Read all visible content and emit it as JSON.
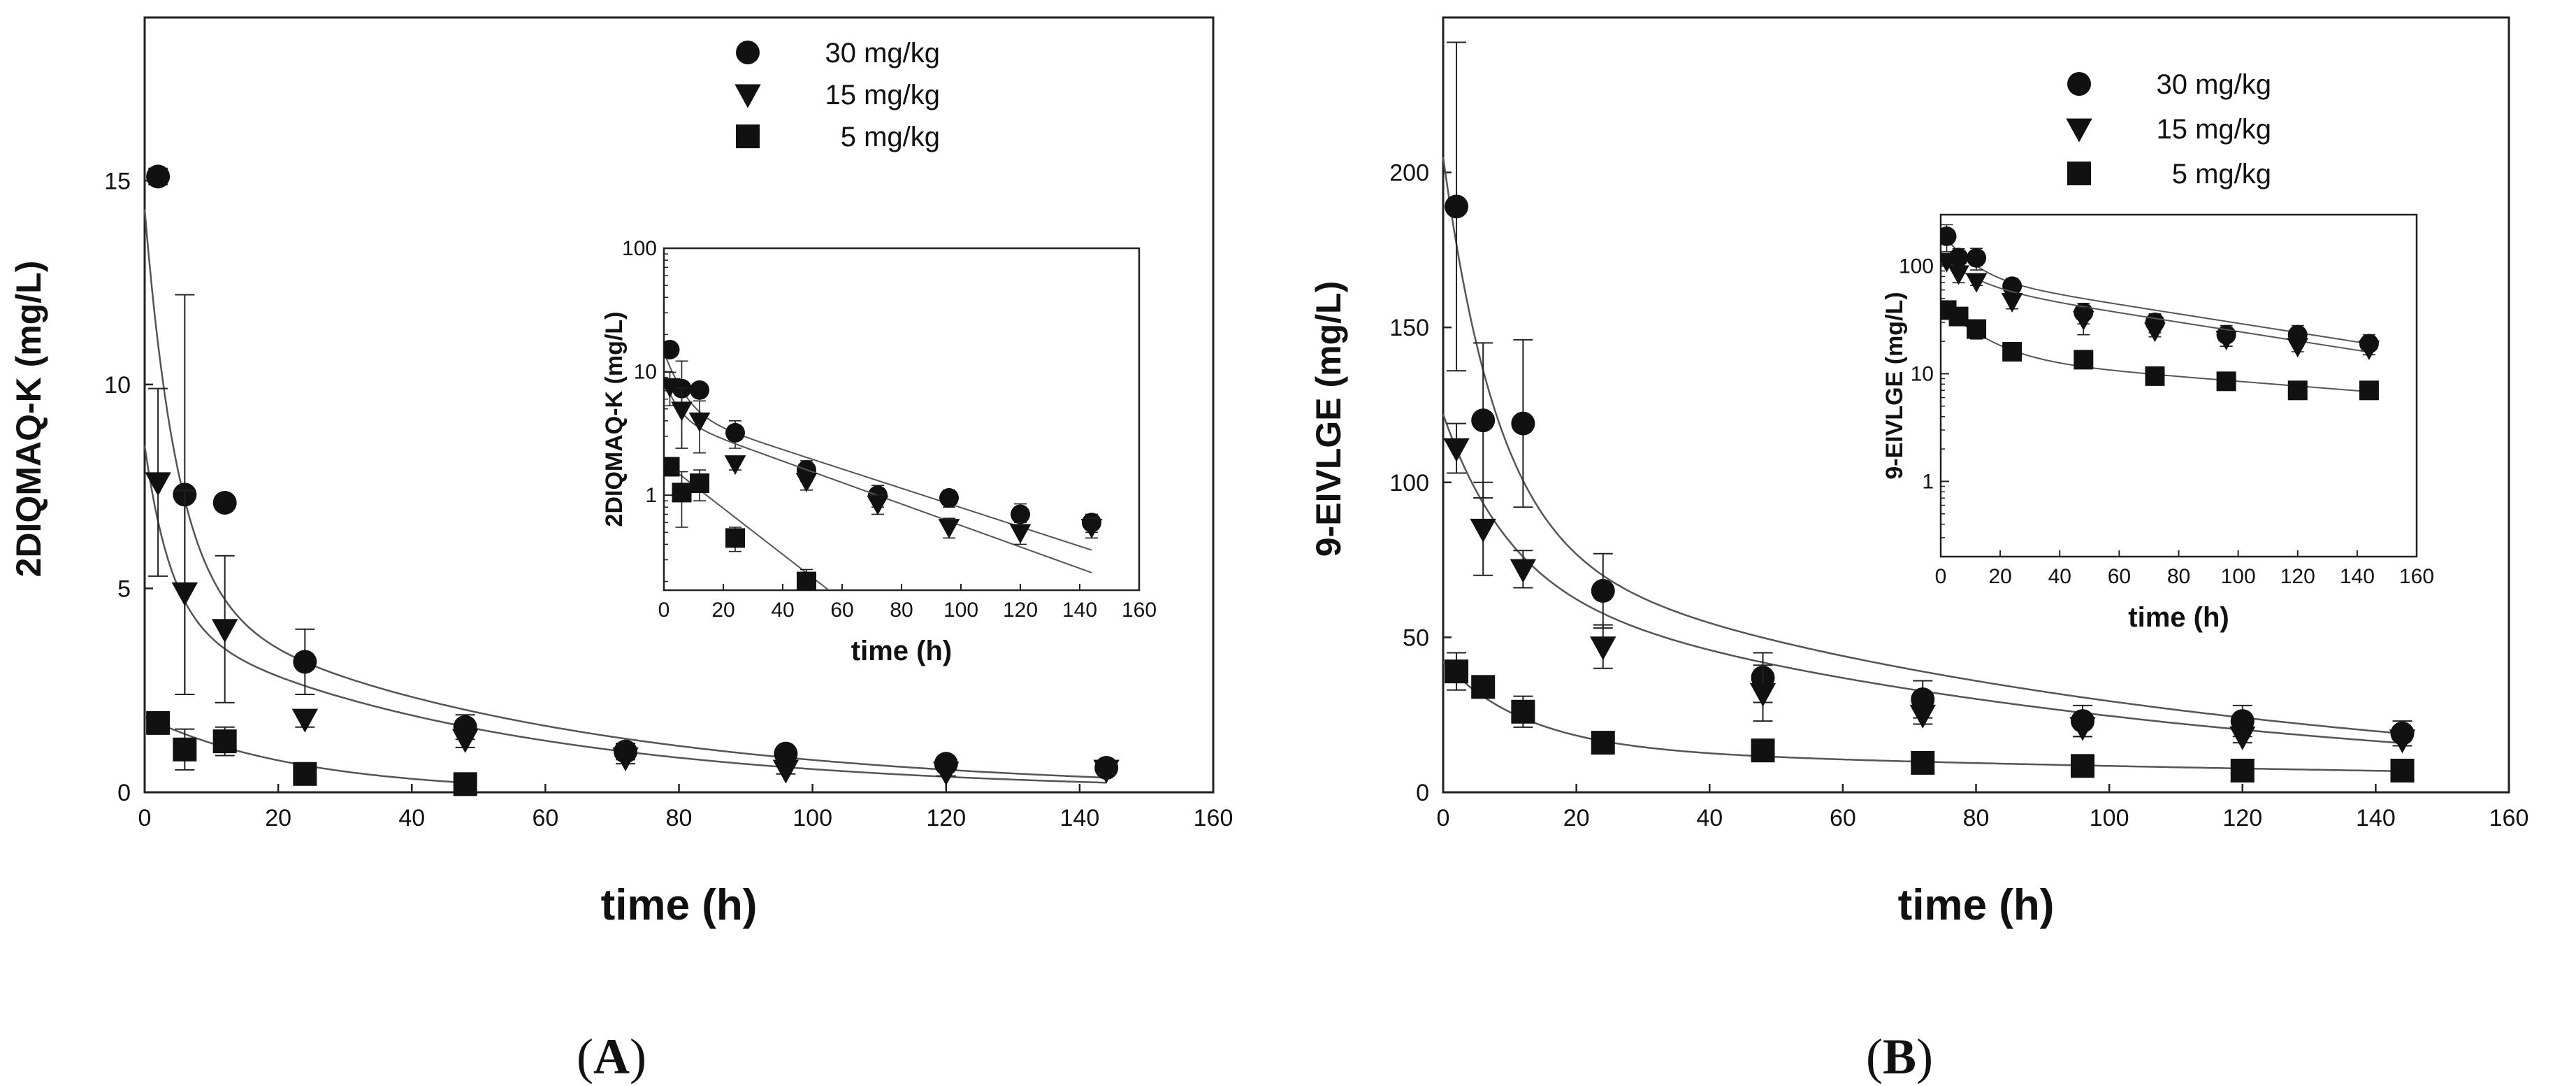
{
  "chart_data": [
    {
      "type": "scatter",
      "panel_label": "A",
      "title": "",
      "xlabel": "time (h)",
      "ylabel": "2DIQMAQ-K (mg/L)",
      "xlim": [
        0,
        160
      ],
      "ylim": [
        0,
        19
      ],
      "xticks": [
        0,
        20,
        40,
        60,
        80,
        100,
        120,
        140,
        160
      ],
      "yticks": [
        0,
        5,
        10,
        15
      ],
      "legend_position": "top-right",
      "series": [
        {
          "name": "30 mg/kg",
          "marker": "circle",
          "x": [
            2,
            6,
            12,
            24,
            48,
            72,
            96,
            120,
            144
          ],
          "y": [
            15.1,
            7.3,
            7.1,
            3.2,
            1.6,
            1.0,
            0.95,
            0.7,
            0.6
          ],
          "err": [
            0.2,
            4.9,
            0,
            0.8,
            0.3,
            0.2,
            0.15,
            0.15,
            0.1
          ],
          "fit": {
            "A": 9.5,
            "a": 0.2,
            "B": 4.8,
            "b": 0.018
          }
        },
        {
          "name": "15 mg/kg",
          "marker": "triangle-down",
          "x": [
            2,
            6,
            12,
            24,
            48,
            72,
            96,
            120,
            144
          ],
          "y": [
            7.6,
            4.9,
            4.0,
            1.8,
            1.3,
            0.85,
            0.55,
            0.5,
            0.55
          ],
          "err": [
            2.3,
            2.5,
            1.8,
            0.2,
            0.2,
            0.15,
            0.1,
            0.1,
            0.1
          ],
          "fit": {
            "A": 4.3,
            "a": 0.25,
            "B": 4.2,
            "b": 0.02
          }
        },
        {
          "name": "5 mg/kg",
          "marker": "square",
          "x": [
            2,
            6,
            12,
            24,
            48
          ],
          "y": [
            1.7,
            1.05,
            1.25,
            0.45,
            0.2
          ],
          "err": [
            0.2,
            0.5,
            0.35,
            0.1,
            0.05
          ],
          "fit": {
            "A": 1.85,
            "a": 0.043,
            "B": 0,
            "b": 0
          }
        }
      ],
      "inset": {
        "xlabel": "time (h)",
        "ylabel": "2DIQMAQ-K (mg/L)",
        "xticks": [
          0,
          20,
          40,
          60,
          80,
          100,
          120,
          140,
          160
        ],
        "ytick_labels": [
          "100",
          "10",
          "1"
        ],
        "xlim": [
          0,
          160
        ],
        "ylog_range": [
          0.17,
          100
        ]
      }
    },
    {
      "type": "scatter",
      "panel_label": "B",
      "title": "",
      "xlabel": "time (h)",
      "ylabel": "9-EIVLGE (mg/L)",
      "xlim": [
        0,
        160
      ],
      "ylim": [
        0,
        250
      ],
      "xticks": [
        0,
        20,
        40,
        60,
        80,
        100,
        120,
        140,
        160
      ],
      "yticks": [
        0,
        50,
        100,
        150,
        200
      ],
      "legend_position": "top-right",
      "series": [
        {
          "name": "30 mg/kg",
          "marker": "circle",
          "x": [
            2,
            6,
            12,
            24,
            48,
            72,
            96,
            120,
            144
          ],
          "y": [
            189,
            120,
            119,
            65,
            37,
            30,
            23,
            23,
            19
          ],
          "err": [
            53,
            25,
            27,
            12,
            8,
            6,
            5,
            5,
            4
          ],
          "fit": {
            "A": 125,
            "a": 0.12,
            "B": 80,
            "b": 0.01
          }
        },
        {
          "name": "15 mg/kg",
          "marker": "triangle-down",
          "x": [
            2,
            6,
            12,
            24,
            48,
            72,
            96,
            120,
            144
          ],
          "y": [
            111,
            85,
            72,
            47,
            32,
            25,
            21,
            18,
            17
          ],
          "err": [
            8,
            15,
            6,
            7,
            9,
            3,
            3,
            2,
            2
          ],
          "fit": {
            "A": 55,
            "a": 0.1,
            "B": 67,
            "b": 0.01
          }
        },
        {
          "name": "5 mg/kg",
          "marker": "square",
          "x": [
            2,
            6,
            12,
            24,
            48,
            72,
            96,
            120,
            144
          ],
          "y": [
            39,
            34,
            26,
            16,
            13.5,
            9.5,
            8.5,
            7,
            7
          ],
          "err": [
            6,
            2,
            5,
            2,
            1,
            1,
            1,
            1,
            1
          ],
          "fit": {
            "A": 28,
            "a": 0.08,
            "B": 14,
            "b": 0.005
          }
        }
      ],
      "inset": {
        "xlabel": "time (h)",
        "ylabel": "9-EIVLGE (mg/L)",
        "xticks": [
          0,
          20,
          40,
          60,
          80,
          100,
          120,
          140,
          160
        ],
        "ytick_labels": [
          "100",
          "10",
          "1"
        ],
        "xlim": [
          0,
          160
        ],
        "ylog_range": [
          0.2,
          300
        ]
      }
    }
  ]
}
